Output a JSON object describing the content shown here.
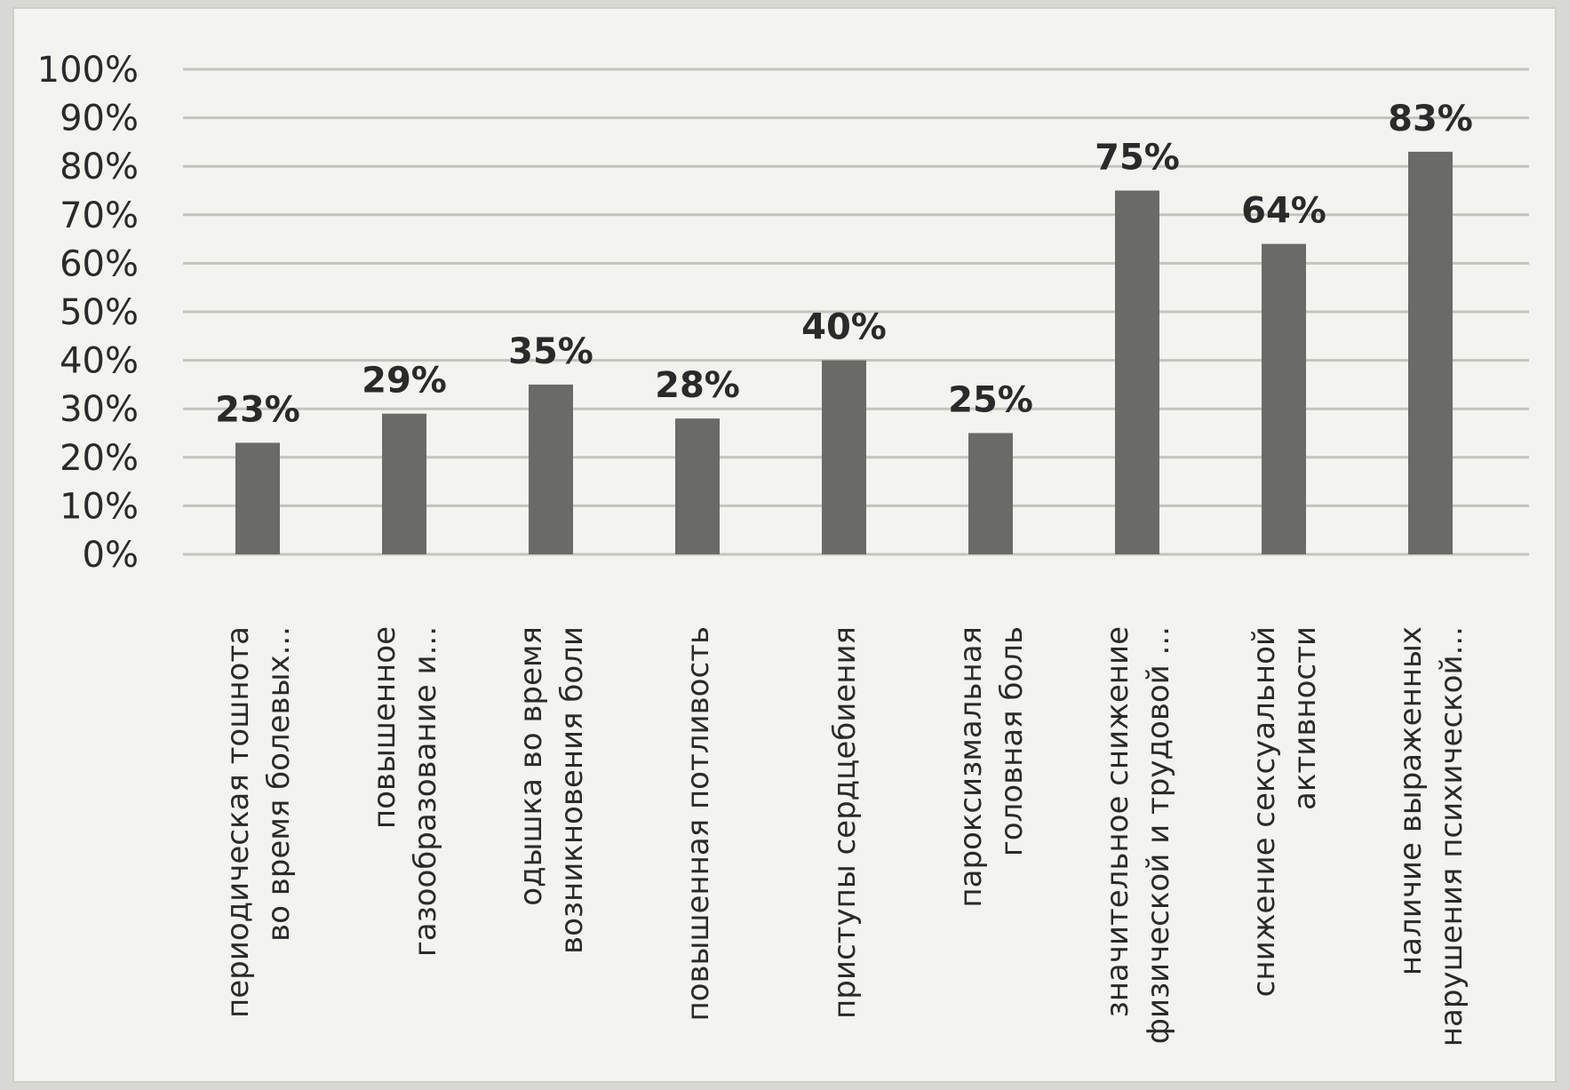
{
  "chart_data": {
    "type": "bar",
    "categories": [
      [
        "периодическая тошнота",
        "во время болевых..."
      ],
      [
        "повышенное",
        "газообразование и..."
      ],
      [
        "одышка во время",
        "возникновения боли"
      ],
      [
        "повышенная потливость"
      ],
      [
        "приступы сердцебиения"
      ],
      [
        "пароксизмальная",
        "головная боль"
      ],
      [
        "значительное снижение",
        "физической и трудовой ..."
      ],
      [
        "снижение сексуальной",
        "активности"
      ],
      [
        "наличие выраженных",
        "нарушения психической..."
      ]
    ],
    "values": [
      23,
      29,
      35,
      28,
      40,
      25,
      75,
      64,
      83
    ],
    "data_labels": [
      "23%",
      "29%",
      "35%",
      "28%",
      "40%",
      "25%",
      "75%",
      "64%",
      "83%"
    ],
    "y_ticks": [
      "0%",
      "10%",
      "20%",
      "30%",
      "40%",
      "50%",
      "60%",
      "70%",
      "80%",
      "90%",
      "100%"
    ],
    "ylim": [
      0,
      100
    ],
    "grid": true,
    "bar_color": "#6a6a66"
  }
}
